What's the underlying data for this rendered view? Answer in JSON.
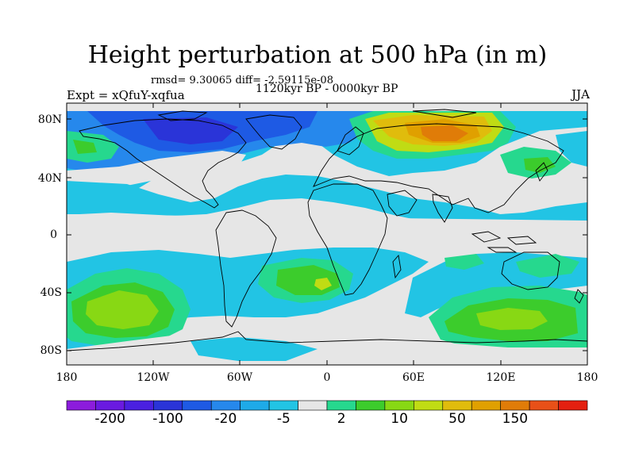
{
  "title": "Height perturbation at 500 hPa (in m)",
  "stats": "rmsd= 9.30065 diff= -2.59115e-08",
  "expt": "Expt = xQfuY-xqfua",
  "period": "1120kyr BP - 0000kyr BP",
  "season": "JJA",
  "lat_ticks": [
    "80N",
    "40N",
    "0",
    "40S",
    "80S"
  ],
  "lon_ticks": [
    "180",
    "120W",
    "60W",
    "0",
    "60E",
    "120E",
    "180"
  ],
  "colorbar": {
    "colors": [
      "#8c1cdc",
      "#6a1ae0",
      "#4a20e0",
      "#2a34d8",
      "#1e5ae4",
      "#2688ec",
      "#1eaae8",
      "#22c4e4",
      "#e6e6e6",
      "#26d88e",
      "#3ccc2c",
      "#88d814",
      "#c0dc14",
      "#e0bc0c",
      "#e0a000",
      "#e07c08",
      "#e85018",
      "#e42010"
    ],
    "labels": [
      "-200",
      "-100",
      "-20",
      "-5",
      "2",
      "10",
      "50",
      "150"
    ]
  },
  "field": {
    "background_color": "#e6e6e6",
    "coastline_color": "#000000"
  }
}
